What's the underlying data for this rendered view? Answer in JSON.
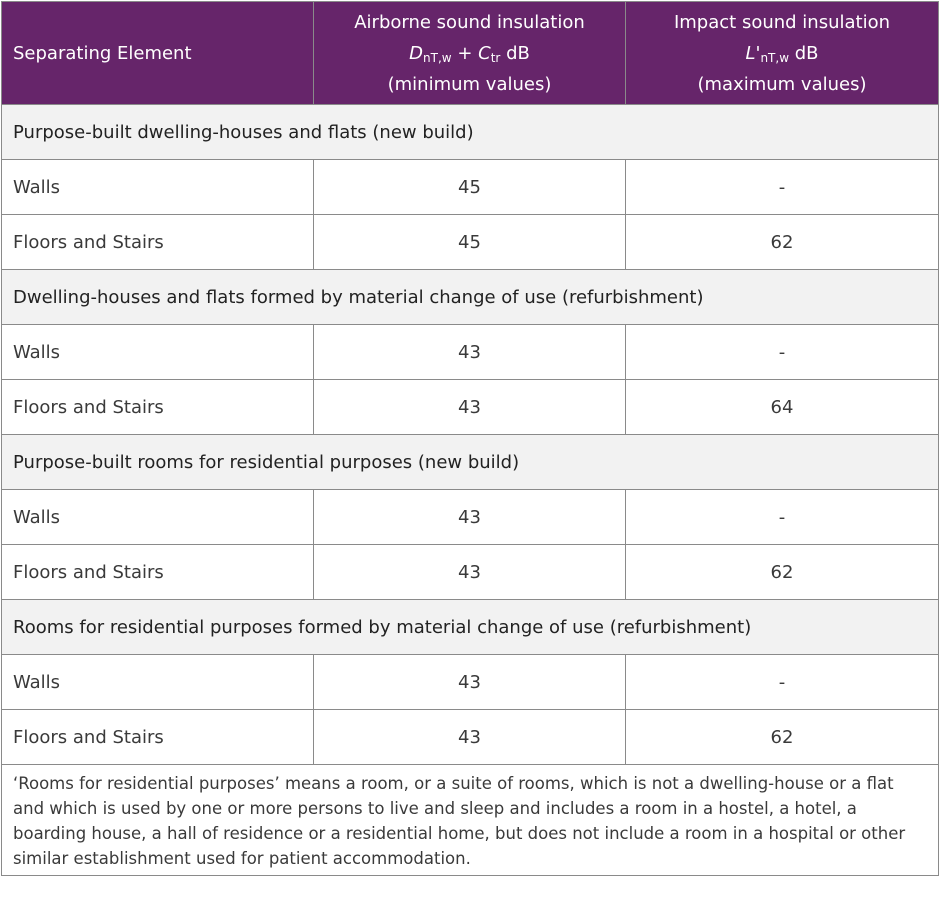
{
  "header": {
    "col1": "Separating Element",
    "col2": {
      "line1": "Airborne sound insulation",
      "sym_main": "D",
      "sym_sub": "nT,w",
      "plus": " + ",
      "c_main": "C",
      "c_sub": "tr",
      "unit": " dB",
      "line3": "(minimum values)"
    },
    "col3": {
      "line1": "Impact sound insulation",
      "sym_main": "L'",
      "sym_sub": "nT,w",
      "unit": " dB",
      "line3": "(maximum values)"
    }
  },
  "sections": [
    {
      "title": "Purpose-built dwelling-houses and flats (new build)",
      "rows": [
        {
          "element": "Walls",
          "airborne": "45",
          "impact": "-"
        },
        {
          "element": "Floors and Stairs",
          "airborne": "45",
          "impact": "62"
        }
      ]
    },
    {
      "title": "Dwelling-houses and flats formed by material change of use (refurbishment)",
      "rows": [
        {
          "element": "Walls",
          "airborne": "43",
          "impact": "-"
        },
        {
          "element": "Floors and Stairs",
          "airborne": "43",
          "impact": "64"
        }
      ]
    },
    {
      "title": "Purpose-built rooms for residential purposes (new build)",
      "rows": [
        {
          "element": "Walls",
          "airborne": "43",
          "impact": "-"
        },
        {
          "element": "Floors and Stairs",
          "airborne": "43",
          "impact": "62"
        }
      ]
    },
    {
      "title": "Rooms for residential purposes formed by material change of use (refurbishment)",
      "rows": [
        {
          "element": "Walls",
          "airborne": "43",
          "impact": "-"
        },
        {
          "element": "Floors and Stairs",
          "airborne": "43",
          "impact": "62"
        }
      ]
    }
  ],
  "note": "‘Rooms for residential purposes’ means a room, or a suite of rooms, which is not a dwelling-house or a flat and which is used by one or more persons to live and sleep and includes a room in a hostel, a hotel, a boarding house, a hall of residence or a residential home, but does not include a room in a hospital or other similar establishment used for patient accommodation.",
  "colors": {
    "header_bg": "#66256a",
    "section_bg": "#f2f2f2",
    "border": "#8a8a8a"
  }
}
